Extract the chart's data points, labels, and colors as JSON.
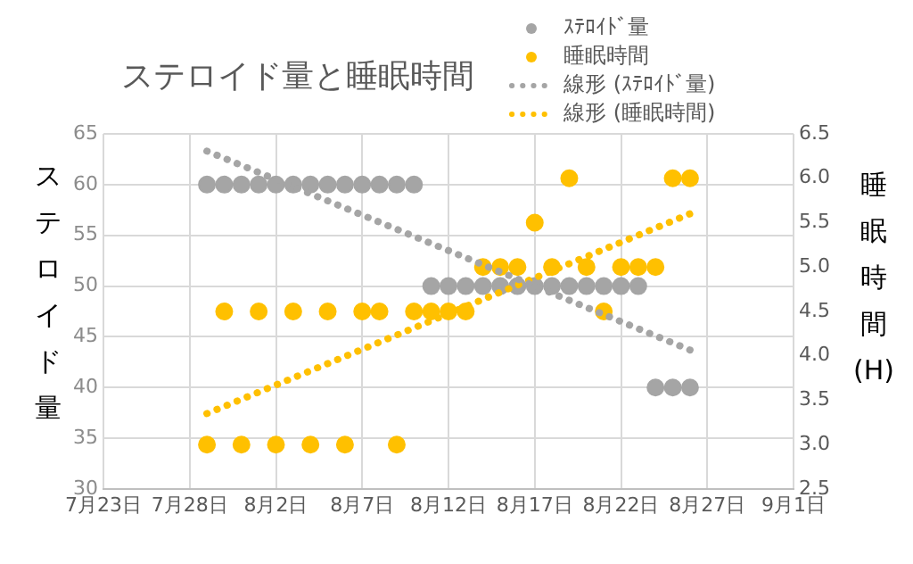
{
  "chart_data": {
    "type": "scatter",
    "title": "ステロイド量と睡眠時間",
    "ylabel": "ステロイド量",
    "y2label": "睡眠時間 (H)",
    "x": [
      "--07-29",
      "--07-30",
      "--07-31",
      "--08-01",
      "--08-02",
      "--08-03",
      "--08-04",
      "--08-05",
      "--08-06",
      "--08-07",
      "--08-08",
      "--08-09",
      "--08-10",
      "--08-11",
      "--08-12",
      "--08-13",
      "--08-14",
      "--08-15",
      "--08-16",
      "--08-17",
      "--08-18",
      "--08-19",
      "--08-20",
      "--08-21",
      "--08-22",
      "--08-23",
      "--08-24",
      "--08-25",
      "--08-26"
    ],
    "series": [
      {
        "name": "ｽﾃﾛｲﾄﾞ量",
        "color": "#a5a5a5",
        "values": [
          60,
          60,
          60,
          60,
          60,
          60,
          60,
          60,
          60,
          60,
          60,
          60,
          60,
          50,
          50,
          50,
          50,
          50,
          50,
          50,
          50,
          50,
          50,
          50,
          50,
          50,
          40,
          40,
          40
        ]
      },
      {
        "name": "睡眠時間",
        "color": "#ffc000",
        "axis": "y2",
        "values": [
          3.0,
          4.5,
          3.0,
          4.5,
          3.0,
          4.5,
          3.0,
          4.5,
          3.0,
          4.5,
          4.5,
          3.0,
          4.5,
          4.5,
          4.5,
          4.5,
          5.0,
          5.0,
          5.0,
          5.5,
          5.0,
          6.0,
          5.0,
          4.5,
          5.0,
          5.0,
          5.0,
          6.0,
          6.0
        ]
      },
      {
        "name": "線形 (ｽﾃﾛｲﾄﾞ量)",
        "type": "line",
        "color": "#a5a5a5",
        "line_style": "dotted",
        "marker": "none",
        "x": [
          "--07-29",
          "--08-26"
        ],
        "values": [
          63.3,
          43.7
        ]
      },
      {
        "name": "線形 (睡眠時間)",
        "type": "line",
        "color": "#ffc000",
        "line_style": "dotted",
        "marker": "none",
        "axis": "y2",
        "x": [
          "--07-29",
          "--08-26"
        ],
        "values": [
          3.35,
          5.6
        ]
      }
    ],
    "marker": "circle",
    "xlim": [
      "--07-23",
      "--09-01"
    ],
    "xticks": [
      {
        "value": "--07-23",
        "label": "7月23日"
      },
      {
        "value": "--07-28",
        "label": "7月28日"
      },
      {
        "value": "--08-02",
        "label": "8月2日"
      },
      {
        "value": "--08-07",
        "label": "8月7日"
      },
      {
        "value": "--08-12",
        "label": "8月12日"
      },
      {
        "value": "--08-17",
        "label": "8月17日"
      },
      {
        "value": "--08-22",
        "label": "8月22日"
      },
      {
        "value": "--08-27",
        "label": "8月27日"
      },
      {
        "value": "--09-01",
        "label": "9月1日"
      }
    ],
    "ylim": [
      30,
      65
    ],
    "yticks": [
      30,
      35,
      40,
      45,
      50,
      55,
      60,
      65
    ],
    "y2lim": [
      2.5,
      6.5
    ],
    "y2ticks": [
      {
        "value": 2.5,
        "label": "2.5"
      },
      {
        "value": 3,
        "label": "3.0"
      },
      {
        "value": 3.5,
        "label": "3.5"
      },
      {
        "value": 4,
        "label": "4.0"
      },
      {
        "value": 4.5,
        "label": "4.5"
      },
      {
        "value": 5,
        "label": "5.0"
      },
      {
        "value": 5.5,
        "label": "5.5"
      },
      {
        "value": 6,
        "label": "6.0"
      },
      {
        "value": 6.5,
        "label": "6.5"
      }
    ],
    "grid": true,
    "legend": "top right"
  }
}
